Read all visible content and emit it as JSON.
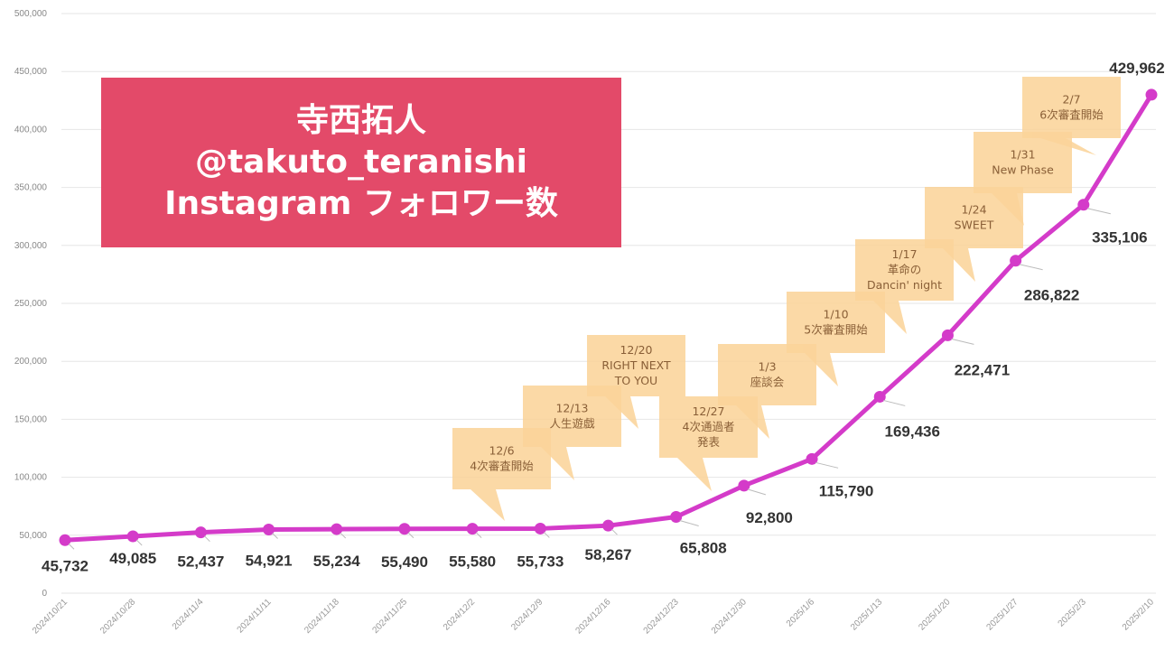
{
  "colors": {
    "line": "#d43bc9",
    "title_bg": "#e34a69",
    "annotation_bg": "#fbd49a",
    "grid": "#e6e6e6"
  },
  "title_lines": [
    "寺西拓人",
    "@takuto_teranishi",
    "Instagram フォロワー数"
  ],
  "chart_data": {
    "type": "line",
    "categories": [
      "2024/10/21",
      "2024/10/28",
      "2024/11/4",
      "2024/11/11",
      "2024/11/18",
      "2024/11/25",
      "2024/12/2",
      "2024/12/9",
      "2024/12/16",
      "2024/12/23",
      "2024/12/30",
      "2025/1/6",
      "2025/1/13",
      "2025/1/20",
      "2025/1/27",
      "2025/2/3",
      "2025/2/10"
    ],
    "series": [
      {
        "values": [
          45732,
          49085,
          52437,
          54921,
          55234,
          55490,
          55580,
          55733,
          58267,
          65808,
          92800,
          115790,
          169436,
          222471,
          286822,
          335106,
          429962
        ],
        "labels": [
          "45,732",
          "49,085",
          "52,437",
          "54,921",
          "55,234",
          "55,490",
          "55,580",
          "55,733",
          "58,267",
          "65,808",
          "92,800",
          "115,790",
          "169,436",
          "222,471",
          "286,822",
          "335,106",
          "429,962"
        ]
      }
    ],
    "ylim": [
      0,
      500000
    ],
    "yticks": [
      "0",
      "50,000",
      "100,000",
      "150,000",
      "200,000",
      "250,000",
      "300,000",
      "350,000",
      "400,000",
      "450,000",
      "500,000"
    ],
    "grid": true,
    "annotations": [
      {
        "lines": [
          "12/6",
          "4次審査開始"
        ]
      },
      {
        "lines": [
          "12/13",
          "人生遊戯"
        ]
      },
      {
        "lines": [
          "12/20",
          "RIGHT NEXT",
          "TO YOU"
        ]
      },
      {
        "lines": [
          "12/27",
          "4次通過者",
          "発表"
        ]
      },
      {
        "lines": [
          "1/3",
          "座談会"
        ]
      },
      {
        "lines": [
          "1/10",
          "5次審査開始"
        ]
      },
      {
        "lines": [
          "1/17",
          "革命の",
          "Dancin' night"
        ]
      },
      {
        "lines": [
          "1/24",
          "SWEET"
        ]
      },
      {
        "lines": [
          "1/31",
          "New Phase"
        ]
      },
      {
        "lines": [
          "2/7",
          "6次審査開始"
        ]
      }
    ]
  }
}
